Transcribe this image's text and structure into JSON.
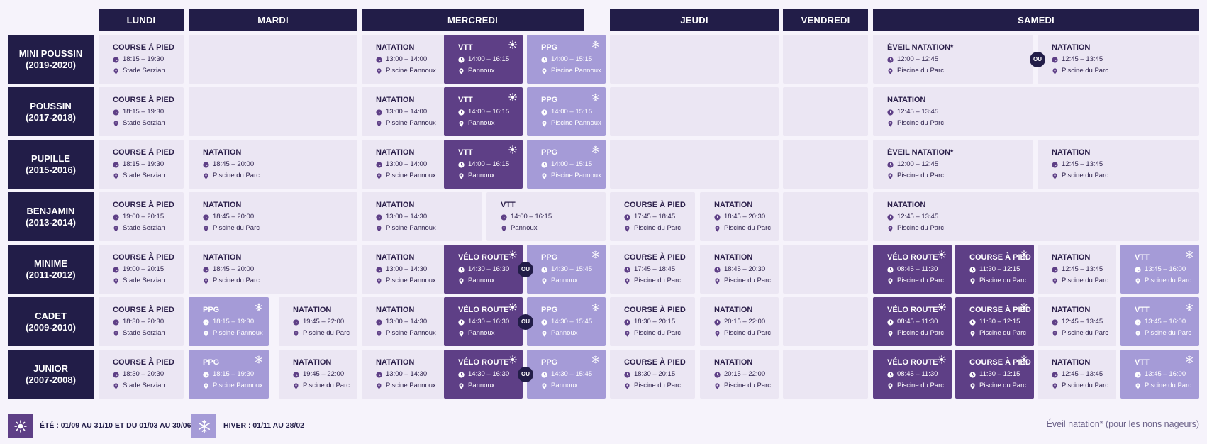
{
  "days": [
    {
      "label": "LUNDI"
    },
    {
      "label": "MARDI"
    },
    {
      "label": "MERCREDI"
    },
    {
      "label": "JEUDI"
    },
    {
      "label": "VENDREDI"
    },
    {
      "label": "SAMEDI"
    }
  ],
  "categories": [
    {
      "name": "MINI POUSSIN",
      "years": "(2019-2020)"
    },
    {
      "name": "POUSSIN",
      "years": "(2017-2018)"
    },
    {
      "name": "PUPILLE",
      "years": "(2015-2016)"
    },
    {
      "name": "BENJAMIN",
      "years": "(2013-2014)"
    },
    {
      "name": "MINIME",
      "years": "(2011-2012)"
    },
    {
      "name": "CADET",
      "years": "(2009-2010)"
    },
    {
      "name": "JUNIOR",
      "years": "(2007-2008)"
    }
  ],
  "or_label": "OU",
  "colors": {
    "header": "#221d48",
    "cell": "#ebe6f3",
    "summer": "#5e3f86",
    "winter": "#a59bd7"
  },
  "icons": {
    "time": "clock-icon",
    "place": "location-pin-icon",
    "summer": "sun-icon",
    "winter": "snowflake-icon"
  },
  "sessions": [
    {
      "row": 0,
      "day": "LUNDI",
      "activity": "COURSE À PIED",
      "time": "18:15 – 19:30",
      "place": "Stade Serzian",
      "season": "all"
    },
    {
      "row": 0,
      "day": "MERCREDI",
      "activity": "NATATION",
      "time": "13:00 – 14:00",
      "place": "Piscine Pannoux",
      "season": "all"
    },
    {
      "row": 0,
      "day": "MERCREDI",
      "activity": "VTT",
      "time": "14:00 – 16:15",
      "place": "Pannoux",
      "season": "summer"
    },
    {
      "row": 0,
      "day": "MERCREDI",
      "activity": "PPG",
      "time": "14:00 – 15:15",
      "place": "Piscine Pannoux",
      "season": "winter"
    },
    {
      "row": 0,
      "day": "SAMEDI",
      "activity": "ÉVEIL NATATION*",
      "time": "12:00 – 12:45",
      "place": "Piscine du Parc",
      "season": "all"
    },
    {
      "row": 0,
      "day": "SAMEDI",
      "activity": "NATATION",
      "time": "12:45 – 13:45",
      "place": "Piscine du Parc",
      "season": "all"
    },
    {
      "row": 1,
      "day": "LUNDI",
      "activity": "COURSE À PIED",
      "time": "18:15 – 19:30",
      "place": "Stade Serzian",
      "season": "all"
    },
    {
      "row": 1,
      "day": "MERCREDI",
      "activity": "NATATION",
      "time": "13:00 – 14:00",
      "place": "Piscine Pannoux",
      "season": "all"
    },
    {
      "row": 1,
      "day": "MERCREDI",
      "activity": "VTT",
      "time": "14:00 – 16:15",
      "place": "Pannoux",
      "season": "summer"
    },
    {
      "row": 1,
      "day": "MERCREDI",
      "activity": "PPG",
      "time": "14:00 – 15:15",
      "place": "Piscine Pannoux",
      "season": "winter"
    },
    {
      "row": 1,
      "day": "SAMEDI",
      "activity": "NATATION",
      "time": "12:45 – 13:45",
      "place": "Piscine du Parc",
      "season": "all"
    },
    {
      "row": 2,
      "day": "LUNDI",
      "activity": "COURSE À PIED",
      "time": "18:15 – 19:30",
      "place": "Stade Serzian",
      "season": "all"
    },
    {
      "row": 2,
      "day": "MARDI",
      "activity": "NATATION",
      "time": "18:45 – 20:00",
      "place": "Piscine du Parc",
      "season": "all"
    },
    {
      "row": 2,
      "day": "MERCREDI",
      "activity": "NATATION",
      "time": "13:00 – 14:00",
      "place": "Piscine Pannoux",
      "season": "all"
    },
    {
      "row": 2,
      "day": "MERCREDI",
      "activity": "VTT",
      "time": "14:00 – 16:15",
      "place": "Pannoux",
      "season": "summer"
    },
    {
      "row": 2,
      "day": "MERCREDI",
      "activity": "PPG",
      "time": "14:00 – 15:15",
      "place": "Piscine Pannoux",
      "season": "winter"
    },
    {
      "row": 2,
      "day": "SAMEDI",
      "activity": "ÉVEIL NATATION*",
      "time": "12:00 – 12:45",
      "place": "Piscine du Parc",
      "season": "all"
    },
    {
      "row": 2,
      "day": "SAMEDI",
      "activity": "NATATION",
      "time": "12:45 – 13:45",
      "place": "Piscine du Parc",
      "season": "all"
    },
    {
      "row": 3,
      "day": "LUNDI",
      "activity": "COURSE À PIED",
      "time": "19:00 – 20:15",
      "place": "Stade Serzian",
      "season": "all"
    },
    {
      "row": 3,
      "day": "MARDI",
      "activity": "NATATION",
      "time": "18:45 – 20:00",
      "place": "Piscine du Parc",
      "season": "all"
    },
    {
      "row": 3,
      "day": "MERCREDI",
      "activity": "NATATION",
      "time": "13:00 – 14:30",
      "place": "Piscine Pannoux",
      "season": "all"
    },
    {
      "row": 3,
      "day": "MERCREDI",
      "activity": "VTT",
      "time": "14:00 – 16:15",
      "place": "Pannoux",
      "season": "all"
    },
    {
      "row": 3,
      "day": "JEUDI",
      "activity": "COURSE À PIED",
      "time": "17:45 – 18:45",
      "place": "Piscine du Parc",
      "season": "all"
    },
    {
      "row": 3,
      "day": "JEUDI",
      "activity": "NATATION",
      "time": "18:45 – 20:30",
      "place": "Piscine du Parc",
      "season": "all"
    },
    {
      "row": 3,
      "day": "SAMEDI",
      "activity": "NATATION",
      "time": "12:45 – 13:45",
      "place": "Piscine du Parc",
      "season": "all"
    },
    {
      "row": 4,
      "day": "LUNDI",
      "activity": "COURSE À PIED",
      "time": "19:00 – 20:15",
      "place": "Stade Serzian",
      "season": "all"
    },
    {
      "row": 4,
      "day": "MARDI",
      "activity": "NATATION",
      "time": "18:45 – 20:00",
      "place": "Piscine du Parc",
      "season": "all"
    },
    {
      "row": 4,
      "day": "MERCREDI",
      "activity": "NATATION",
      "time": "13:00 – 14:30",
      "place": "Piscine Pannoux",
      "season": "all"
    },
    {
      "row": 4,
      "day": "MERCREDI",
      "activity": "VÉLO ROUTE",
      "time": "14:30 – 16:30",
      "place": "Pannoux",
      "season": "summer"
    },
    {
      "row": 4,
      "day": "MERCREDI",
      "activity": "PPG",
      "time": "14:30 – 15:45",
      "place": "Pannoux",
      "season": "winter"
    },
    {
      "row": 4,
      "day": "JEUDI",
      "activity": "COURSE À PIED",
      "time": "17:45 – 18:45",
      "place": "Piscine du Parc",
      "season": "all"
    },
    {
      "row": 4,
      "day": "JEUDI",
      "activity": "NATATION",
      "time": "18:45 – 20:30",
      "place": "Piscine du Parc",
      "season": "all"
    },
    {
      "row": 4,
      "day": "SAMEDI",
      "activity": "VÉLO ROUTE",
      "time": "08:45 – 11:30",
      "place": "Piscine du Parc",
      "season": "summer"
    },
    {
      "row": 4,
      "day": "SAMEDI",
      "activity": "COURSE À PIED",
      "time": "11:30 – 12:15",
      "place": "Piscine du Parc",
      "season": "summer"
    },
    {
      "row": 4,
      "day": "SAMEDI",
      "activity": "NATATION",
      "time": "12:45 – 13:45",
      "place": "Piscine du Parc",
      "season": "all"
    },
    {
      "row": 4,
      "day": "SAMEDI",
      "activity": "VTT",
      "time": "13:45 – 16:00",
      "place": "Piscine du Parc",
      "season": "winter"
    },
    {
      "row": 5,
      "day": "LUNDI",
      "activity": "COURSE À PIED",
      "time": "18:30 – 20:30",
      "place": "Stade Serzian",
      "season": "all"
    },
    {
      "row": 5,
      "day": "MARDI",
      "activity": "PPG",
      "time": "18:15 – 19:30",
      "place": "Piscine Pannoux",
      "season": "winter"
    },
    {
      "row": 5,
      "day": "MARDI",
      "activity": "NATATION",
      "time": "19:45 – 22:00",
      "place": "Piscine du Parc",
      "season": "all"
    },
    {
      "row": 5,
      "day": "MERCREDI",
      "activity": "NATATION",
      "time": "13:00 – 14:30",
      "place": "Piscine Pannoux",
      "season": "all"
    },
    {
      "row": 5,
      "day": "MERCREDI",
      "activity": "VÉLO ROUTE",
      "time": "14:30 – 16:30",
      "place": "Pannoux",
      "season": "summer"
    },
    {
      "row": 5,
      "day": "MERCREDI",
      "activity": "PPG",
      "time": "14:30 – 15:45",
      "place": "Pannoux",
      "season": "winter"
    },
    {
      "row": 5,
      "day": "JEUDI",
      "activity": "COURSE À PIED",
      "time": "18:30 – 20:15",
      "place": "Piscine du Parc",
      "season": "all"
    },
    {
      "row": 5,
      "day": "JEUDI",
      "activity": "NATATION",
      "time": "20:15 – 22:00",
      "place": "Piscine du Parc",
      "season": "all"
    },
    {
      "row": 5,
      "day": "SAMEDI",
      "activity": "VÉLO ROUTE",
      "time": "08:45 – 11:30",
      "place": "Piscine du Parc",
      "season": "summer"
    },
    {
      "row": 5,
      "day": "SAMEDI",
      "activity": "COURSE À PIED",
      "time": "11:30 – 12:15",
      "place": "Piscine du Parc",
      "season": "summer"
    },
    {
      "row": 5,
      "day": "SAMEDI",
      "activity": "NATATION",
      "time": "12:45 – 13:45",
      "place": "Piscine du Parc",
      "season": "all"
    },
    {
      "row": 5,
      "day": "SAMEDI",
      "activity": "VTT",
      "time": "13:45 – 16:00",
      "place": "Piscine du Parc",
      "season": "winter"
    },
    {
      "row": 6,
      "day": "LUNDI",
      "activity": "COURSE À PIED",
      "time": "18:30 – 20:30",
      "place": "Stade Serzian",
      "season": "all"
    },
    {
      "row": 6,
      "day": "MARDI",
      "activity": "PPG",
      "time": "18:15 – 19:30",
      "place": "Piscine Pannoux",
      "season": "winter"
    },
    {
      "row": 6,
      "day": "MARDI",
      "activity": "NATATION",
      "time": "19:45 – 22:00",
      "place": "Piscine du Parc",
      "season": "all"
    },
    {
      "row": 6,
      "day": "MERCREDI",
      "activity": "NATATION",
      "time": "13:00 – 14:30",
      "place": "Piscine Pannoux",
      "season": "all"
    },
    {
      "row": 6,
      "day": "MERCREDI",
      "activity": "VÉLO ROUTE",
      "time": "14:30 – 16:30",
      "place": "Pannoux",
      "season": "summer"
    },
    {
      "row": 6,
      "day": "MERCREDI",
      "activity": "PPG",
      "time": "14:30 – 15:45",
      "place": "Pannoux",
      "season": "winter"
    },
    {
      "row": 6,
      "day": "JEUDI",
      "activity": "COURSE À PIED",
      "time": "18:30 – 20:15",
      "place": "Piscine du Parc",
      "season": "all"
    },
    {
      "row": 6,
      "day": "JEUDI",
      "activity": "NATATION",
      "time": "20:15 – 22:00",
      "place": "Piscine du Parc",
      "season": "all"
    },
    {
      "row": 6,
      "day": "SAMEDI",
      "activity": "VÉLO ROUTE",
      "time": "08:45 – 11:30",
      "place": "Piscine du Parc",
      "season": "summer"
    },
    {
      "row": 6,
      "day": "SAMEDI",
      "activity": "COURSE À PIED",
      "time": "11:30 – 12:15",
      "place": "Piscine du Parc",
      "season": "summer"
    },
    {
      "row": 6,
      "day": "SAMEDI",
      "activity": "NATATION",
      "time": "12:45 – 13:45",
      "place": "Piscine du Parc",
      "season": "all"
    },
    {
      "row": 6,
      "day": "SAMEDI",
      "activity": "VTT",
      "time": "13:45 – 16:00",
      "place": "Piscine du Parc",
      "season": "winter"
    }
  ],
  "legend": {
    "summer_label": "ÉTÉ : 01/09 AU 31/10 ET DU 01/03 AU 30/06",
    "winter_label": "HIVER : 01/11 AU 28/02",
    "note": "Éveil natation* (pour les nons nageurs)"
  }
}
